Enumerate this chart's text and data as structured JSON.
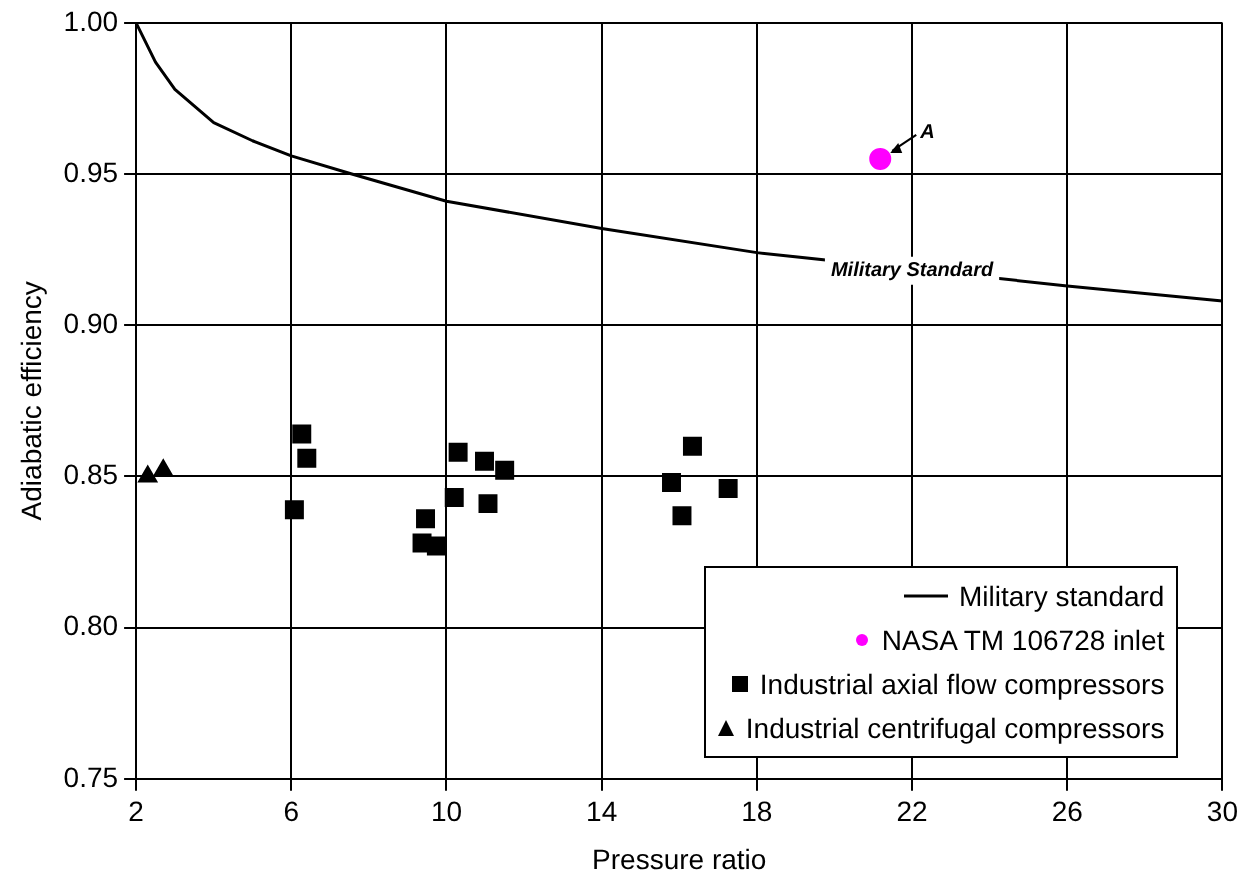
{
  "chart_data": {
    "type": "scatter",
    "xlabel": "Pressure ratio",
    "ylabel": "Adiabatic efficiency",
    "xlim": [
      2,
      30
    ],
    "xticks": [
      2,
      6,
      10,
      14,
      18,
      22,
      26,
      30
    ],
    "ylim": [
      0.75,
      1.0
    ],
    "yticks": [
      {
        "value": 0.75,
        "label": "0.75"
      },
      {
        "value": 0.8,
        "label": "0.80"
      },
      {
        "value": 0.85,
        "label": "0.85"
      },
      {
        "value": 0.9,
        "label": "0.90"
      },
      {
        "value": 0.95,
        "label": "0.95"
      },
      {
        "value": 1.0,
        "label": "1.00"
      }
    ],
    "grid": true,
    "legend": "bottom right",
    "series": [
      {
        "name": "Military standard",
        "type": "line",
        "color": "#000000",
        "marker": "none",
        "line_style": "solid",
        "x": [
          2,
          2.5,
          3,
          4,
          5,
          6,
          7.56,
          10,
          14,
          18,
          26,
          30
        ],
        "values": [
          1.0,
          0.987,
          0.978,
          0.967,
          0.961,
          0.956,
          0.95,
          0.941,
          0.932,
          0.924,
          0.913,
          0.908
        ]
      },
      {
        "name": "NASA TM 106728 inlet",
        "type": "scatter",
        "color": "#ff00ff",
        "marker": "circle",
        "x": [
          21.18
        ],
        "values": [
          0.955
        ]
      },
      {
        "name": "Industrial axial flow compressors",
        "type": "scatter",
        "color": "#000000",
        "marker": "square",
        "x": [
          6.27,
          6.4,
          6.08,
          9.46,
          9.37,
          9.74,
          10.2,
          10.3,
          10.98,
          11.07,
          11.5,
          15.8,
          16.07,
          16.34,
          17.26
        ],
        "values": [
          0.864,
          0.856,
          0.839,
          0.836,
          0.828,
          0.827,
          0.843,
          0.858,
          0.855,
          0.841,
          0.852,
          0.848,
          0.837,
          0.86,
          0.846
        ]
      },
      {
        "name": "Industrial centrifugal compressors",
        "type": "scatter",
        "color": "#000000",
        "marker": "triangle",
        "x": [
          2.3,
          2.7
        ],
        "values": [
          0.85,
          0.852
        ]
      }
    ],
    "annotations": [
      {
        "text": "A",
        "x": 21.18,
        "y": 0.955
      },
      {
        "text": "Military Standard",
        "x": 22,
        "y": 0.918
      }
    ]
  }
}
